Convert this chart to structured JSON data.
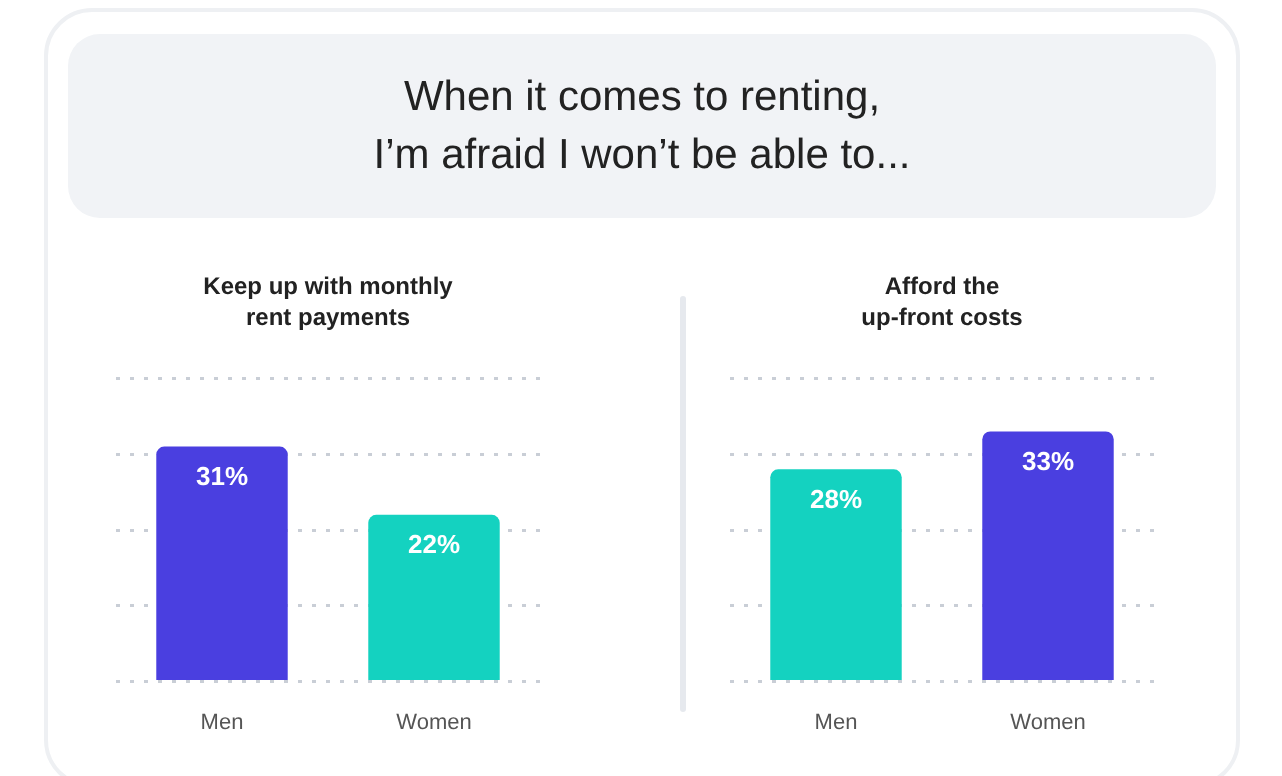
{
  "chart_data": [
    {
      "type": "other",
      "title": "When it comes to renting,\nI’m afraid I won’t be able to..."
    },
    {
      "type": "bar",
      "title": "Keep up with monthly\nrent payments",
      "categories": [
        "Men",
        "Women"
      ],
      "values": [
        31,
        22
      ],
      "colors": [
        "#4a3fe0",
        "#14d2c0"
      ],
      "data_labels": true,
      "value_labels": [
        "31%",
        "22%"
      ],
      "ylim": [
        0,
        40
      ],
      "yticks": [
        {
          "value": 0,
          "label": null
        },
        {
          "value": 10,
          "label": null
        },
        {
          "value": 20,
          "label": null
        },
        {
          "value": 30,
          "label": null
        },
        {
          "value": 40,
          "label": null
        }
      ],
      "tick_labels": "x",
      "grid": "y"
    },
    {
      "type": "bar",
      "title": "Afford the\nup-front costs",
      "categories": [
        "Men",
        "Women"
      ],
      "values": [
        28,
        33
      ],
      "colors": [
        "#14d2c0",
        "#4a3fe0"
      ],
      "data_labels": true,
      "value_labels": [
        "28%",
        "33%"
      ],
      "ylim": [
        0,
        40
      ],
      "yticks": [
        {
          "value": 0,
          "label": null
        },
        {
          "value": 10,
          "label": null
        },
        {
          "value": 20,
          "label": null
        },
        {
          "value": 30,
          "label": null
        },
        {
          "value": 40,
          "label": null
        }
      ],
      "tick_labels": "x",
      "grid": "y"
    }
  ]
}
